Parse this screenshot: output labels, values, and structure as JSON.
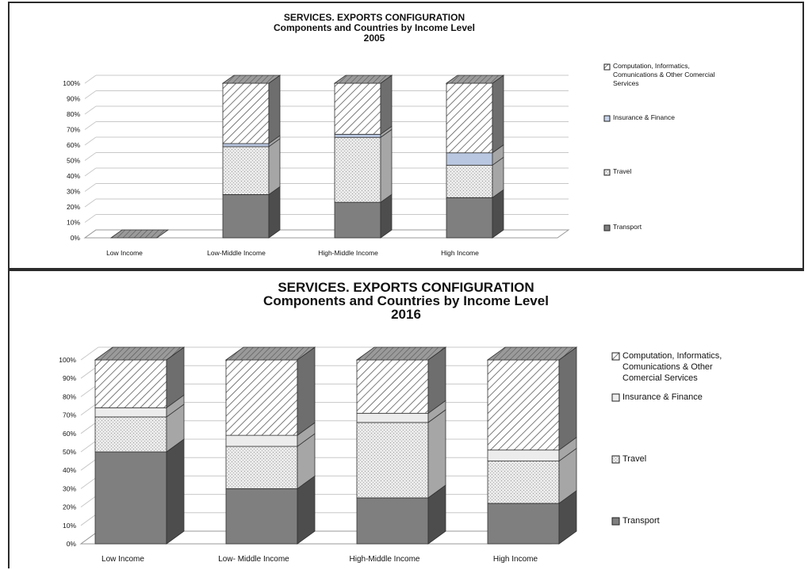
{
  "chart_data": [
    {
      "type": "bar",
      "stacked": true,
      "percent_axis": true,
      "title_lines": [
        "SERVICES. EXPORTS CONFIGURATION",
        "Components and Countries by Income Level",
        "2005"
      ],
      "categories": [
        "Low Income",
        "Low-Middle Income",
        "High-Middle Income",
        "High Income"
      ],
      "y_ticks": [
        "0%",
        "10%",
        "20%",
        "30%",
        "40%",
        "50%",
        "60%",
        "70%",
        "80%",
        "90%",
        "100%"
      ],
      "ylim": [
        0,
        100
      ],
      "legend_position": "right",
      "series": [
        {
          "name": "Transport",
          "values": [
            0,
            28,
            23,
            26
          ]
        },
        {
          "name": "Travel",
          "values": [
            0,
            31,
            42,
            21
          ]
        },
        {
          "name": "Insurance & Finance",
          "values": [
            0,
            2,
            2,
            8
          ]
        },
        {
          "name": "Computation, Informatics, Comunications & Other Comercial Services",
          "values": [
            0,
            39,
            33,
            45
          ]
        }
      ],
      "legend_labels": [
        [
          "Computation, Informatics,",
          "Comunications & Other Comercial",
          "Services"
        ],
        [
          "Insurance & Finance"
        ],
        [
          "Travel"
        ],
        [
          "Transport"
        ]
      ]
    },
    {
      "type": "bar",
      "stacked": true,
      "percent_axis": true,
      "title_lines": [
        "SERVICES. EXPORTS CONFIGURATION",
        "Components and Countries by Income Level",
        "2016"
      ],
      "categories": [
        "Low Income",
        "Low- Middle Income",
        "High-Middle Income",
        "High Income"
      ],
      "y_ticks": [
        "0%",
        "10%",
        "20%",
        "30%",
        "40%",
        "50%",
        "60%",
        "70%",
        "80%",
        "90%",
        "100%"
      ],
      "ylim": [
        0,
        100
      ],
      "legend_position": "right",
      "series": [
        {
          "name": "Transport",
          "values": [
            50,
            30,
            25,
            22
          ]
        },
        {
          "name": "Travel",
          "values": [
            19,
            23,
            41,
            23
          ]
        },
        {
          "name": "Insurance & Finance",
          "values": [
            5,
            6,
            5,
            6
          ]
        },
        {
          "name": "Computation, Informatics, Comunications & Other Comercial Services",
          "values": [
            26,
            41,
            29,
            49
          ]
        }
      ],
      "legend_labels": [
        [
          "Computation, Informatics,",
          "Comunications & Other",
          "Comercial Services"
        ],
        [
          "Insurance & Finance"
        ],
        [
          "Travel"
        ],
        [
          "Transport"
        ]
      ]
    }
  ],
  "colors": {
    "transport_front": "#7f7f7f",
    "transport_side": "#4d4d4d",
    "travel_front": "#dcdcdc",
    "insurance_top_front": "#b9c7e0",
    "insurance_bottom_front": "#ececec",
    "computation_front": "#e4e4e4",
    "cap": "#8c8c8c",
    "grid": "#c8c8c8"
  }
}
